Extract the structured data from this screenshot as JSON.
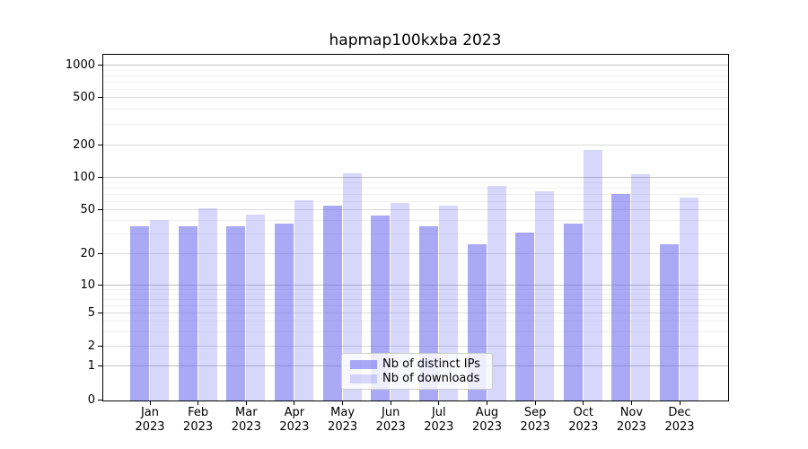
{
  "chart_data": {
    "type": "bar",
    "title": "hapmap100kxba 2023",
    "categories": [
      "Jan",
      "Feb",
      "Mar",
      "Apr",
      "May",
      "Jun",
      "Jul",
      "Aug",
      "Sep",
      "Oct",
      "Nov",
      "Dec"
    ],
    "year": "2023",
    "series": [
      {
        "name": "Nb of distinct IPs",
        "key": "distinct-ips",
        "color": "#a8a8f5",
        "rgba": "rgba(102,102,238,0.56)",
        "values": [
          35,
          35,
          35,
          37,
          54,
          44,
          35,
          24,
          31,
          37,
          70,
          24
        ]
      },
      {
        "name": "Nb of downloads",
        "key": "downloads",
        "color": "#d8d8fa",
        "rgba": "rgba(102,102,238,0.26)",
        "values": [
          40,
          51,
          45,
          61,
          109,
          57,
          54,
          83,
          74,
          180,
          107,
          64
        ]
      }
    ],
    "xlabel": "",
    "ylabel": "",
    "yscale": "symlog",
    "yticks": [
      0,
      1,
      2,
      5,
      10,
      20,
      50,
      100,
      200,
      500,
      1000
    ],
    "ylim": [
      0,
      1300
    ],
    "grid": {
      "horizontal_major": true,
      "horizontal_minor": true,
      "vertical": false
    },
    "legend": {
      "position": "lower center",
      "labels": [
        "Nb of distinct IPs",
        "Nb of downloads"
      ]
    }
  }
}
